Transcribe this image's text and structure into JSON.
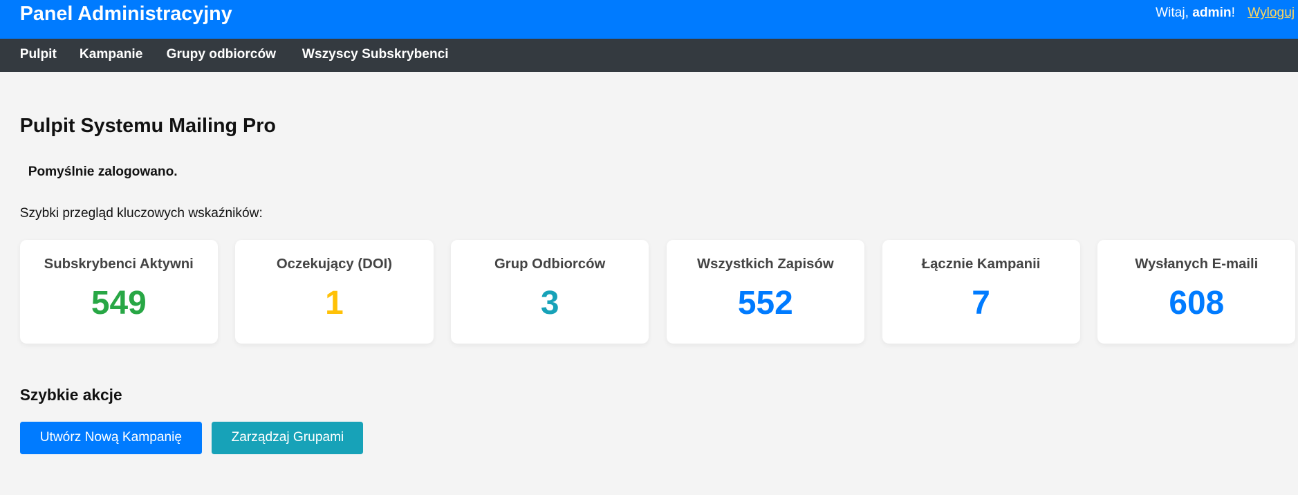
{
  "header": {
    "title": "Panel Administracyjny",
    "greeting_prefix": "Witaj, ",
    "username": "admin",
    "greeting_suffix": "!",
    "logout": "Wyloguj"
  },
  "nav": {
    "items": [
      "Pulpit",
      "Kampanie",
      "Grupy odbiorców",
      "Wszyscy Subskrybenci"
    ]
  },
  "main": {
    "title": "Pulpit Systemu Mailing Pro",
    "success_message": "Pomyślnie zalogowano.",
    "intro": "Szybki przegląd kluczowych wskaźników:",
    "stats": [
      {
        "label": "Subskrybenci Aktywni",
        "value": "549",
        "color": "#28a745"
      },
      {
        "label": "Oczekujący (DOI)",
        "value": "1",
        "color": "#ffc107"
      },
      {
        "label": "Grup Odbiorców",
        "value": "3",
        "color": "#17a2b8"
      },
      {
        "label": "Wszystkich Zapisów",
        "value": "552",
        "color": "#007bff"
      },
      {
        "label": "Łącznie Kampanii",
        "value": "7",
        "color": "#007bff"
      },
      {
        "label": "Wysłanych E-maili",
        "value": "608",
        "color": "#007bff"
      }
    ],
    "quick_actions": {
      "title": "Szybkie akcje",
      "create_campaign": "Utwórz Nową Kampanię",
      "manage_groups": "Zarządzaj Grupami"
    }
  },
  "colors": {
    "primary": "#007bff",
    "nav": "#343a40",
    "info": "#17a2b8",
    "background": "#f4f4f4"
  }
}
